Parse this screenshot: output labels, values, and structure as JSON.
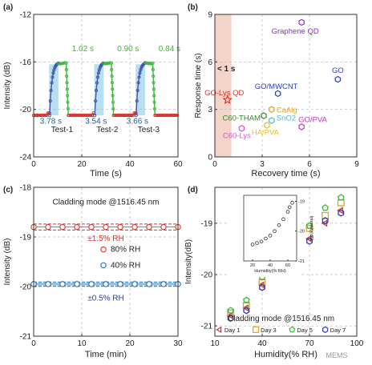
{
  "panels": [
    {
      "letter": "(a)",
      "xlabel": "Time (s)",
      "ylabel": "Intensity (dB)"
    },
    {
      "letter": "(b)",
      "xlabel": "Recovery time (s)",
      "ylabel": "Response time (s)"
    },
    {
      "letter": "(c)",
      "xlabel": "Time (min)",
      "ylabel": "Intensity (dB)"
    },
    {
      "letter": "(d)",
      "xlabel": "Humidity(% RH)",
      "ylabel": "Intensity(dB)"
    }
  ],
  "colors": {
    "red": "#d9342b",
    "green": "#3db83d",
    "blue": "#2f6fb0",
    "cyan": "#7ec8e3",
    "purple": "#8e2bd3",
    "orange": "#e6a21e",
    "cyanband": "#aad9ee",
    "salmon": "#f4d3c8"
  },
  "chart_data": [
    {
      "type": "line",
      "xlabel": "Time (s)",
      "ylabel": "Intensity (dB)",
      "xlim": [
        0,
        60
      ],
      "ylim": [
        -24,
        -12
      ],
      "xticks": [
        0,
        20,
        40,
        60
      ],
      "yticks": [
        -24,
        -20,
        -16,
        -12
      ],
      "series": [
        {
          "name": "",
          "color": "#d9342b",
          "x": [
            0,
            2,
            4,
            5,
            6,
            6.6
          ],
          "y": [
            -20.5,
            -20.5,
            -20.45,
            -20.4,
            -20.2,
            -19.4
          ]
        }
      ],
      "tests": [
        {
          "label": "Test-1",
          "start": 6.6,
          "response_s": "3.78 s",
          "recovery_s": "1.02 s",
          "peak": -16.1
        },
        {
          "label": "Test-2",
          "start": 25.4,
          "response_s": "3.54 s",
          "recovery_s": "0.90 s",
          "peak": -16.1
        },
        {
          "label": "Test-3",
          "start": 42.6,
          "response_s": "3.66 s",
          "recovery_s": "0.84 s",
          "peak": -16.1
        }
      ]
    },
    {
      "type": "scatter",
      "xlabel": "Recovery time (s)",
      "ylabel": "Response time (s)",
      "xlim": [
        0,
        9
      ],
      "ylim": [
        0,
        9
      ],
      "xticks": [
        0,
        3,
        6,
        9
      ],
      "yticks": [
        0,
        3,
        6,
        9
      ],
      "annotation": "< 1 s",
      "points": [
        {
          "label": "Graphene QD",
          "x": 5.5,
          "y": 8.5,
          "color": "#8e2bd3",
          "marker": "hexagon"
        },
        {
          "label": "GO",
          "x": 7.8,
          "y": 4.9,
          "color": "#2b3fb5",
          "marker": "hexagon"
        },
        {
          "label": "GO/MWCNT",
          "x": 4.0,
          "y": 4.0,
          "color": "#2b3fb5",
          "marker": "hexagon"
        },
        {
          "label": "GO-Lys QD",
          "x": 0.8,
          "y": 3.6,
          "color": "#d9342b",
          "marker": "star"
        },
        {
          "label": "CaAlg",
          "x": 3.6,
          "y": 3.0,
          "color": "#e6a21e",
          "marker": "hexagon"
        },
        {
          "label": "C60-THAM",
          "x": 3.1,
          "y": 2.6,
          "color": "#2e8b2e",
          "marker": "hexagon"
        },
        {
          "label": "SnO2",
          "x": 3.6,
          "y": 2.3,
          "color": "#4db8d6",
          "marker": "hexagon"
        },
        {
          "label": "HA/PVA",
          "x": 3.3,
          "y": 2.0,
          "color": "#e6c21e",
          "marker": "hexagon"
        },
        {
          "label": "GO/PVA",
          "x": 5.5,
          "y": 1.9,
          "color": "#c236c2",
          "marker": "hexagon"
        },
        {
          "label": "C60-Lys",
          "x": 1.7,
          "y": 1.8,
          "color": "#d955c8",
          "marker": "hexagon"
        }
      ]
    },
    {
      "type": "scatter",
      "title": "Cladding mode @1516.45 nm",
      "xlabel": "Time (min)",
      "ylabel": "Intensity (dB)",
      "xlim": [
        0,
        30
      ],
      "ylim": [
        -21,
        -18
      ],
      "xticks": [
        0,
        10,
        20,
        30
      ],
      "yticks": [
        -21,
        -20,
        -19,
        -18
      ],
      "series": [
        {
          "name": "80% RH",
          "color": "#d9342b",
          "x": [
            0,
            3,
            6,
            9,
            12,
            15,
            18,
            21,
            24,
            27,
            30
          ],
          "y": [
            -18.8,
            -18.8,
            -18.8,
            -18.8,
            -18.8,
            -18.8,
            -18.8,
            -18.8,
            -18.8,
            -18.8,
            -18.8
          ],
          "band": "±1.5% RH"
        },
        {
          "name": "40% RH",
          "color": "#2f6fb0",
          "x": [
            0,
            3,
            6,
            9,
            12,
            15,
            18,
            21,
            24,
            27,
            30
          ],
          "y": [
            -19.95,
            -19.95,
            -19.95,
            -19.95,
            -19.95,
            -19.95,
            -19.95,
            -19.95,
            -19.95,
            -19.95,
            -19.95
          ],
          "band": "±0.5% RH"
        }
      ]
    },
    {
      "type": "scatter",
      "title": "Cladding mode @1516.45 nm",
      "xlabel": "Humidity(% RH)",
      "ylabel": "Intensity(dB)",
      "xlim": [
        10,
        100
      ],
      "ylim": [
        -21.2,
        -18.3
      ],
      "xticks": [
        10,
        40,
        70,
        100
      ],
      "yticks": [
        -21,
        -20,
        -19
      ],
      "series": [
        {
          "name": "Day 1",
          "color": "#d9342b",
          "marker": "triangle-left",
          "x": [
            20,
            30,
            40,
            50,
            60,
            70,
            80,
            90
          ],
          "y": [
            -20.8,
            -20.65,
            -20.2,
            -19.9,
            -19.65,
            -19.3,
            -19.0,
            -18.75
          ]
        },
        {
          "name": "Day 3",
          "color": "#e6a21e",
          "marker": "square",
          "x": [
            20,
            30,
            40,
            50,
            60,
            70,
            80,
            90
          ],
          "y": [
            -20.75,
            -20.6,
            -20.15,
            -19.85,
            -19.55,
            -19.1,
            -18.85,
            -18.6
          ]
        },
        {
          "name": "Day 5",
          "color": "#3db83d",
          "marker": "pentagon",
          "x": [
            20,
            30,
            40,
            50,
            60,
            70,
            80,
            90
          ],
          "y": [
            -20.7,
            -20.5,
            -20.05,
            -19.8,
            -19.5,
            -19.05,
            -18.7,
            -18.5
          ]
        },
        {
          "name": "Day 7",
          "color": "#2b3fb5",
          "marker": "hexagon",
          "x": [
            20,
            30,
            40,
            50,
            60,
            70,
            80,
            90
          ],
          "y": [
            -20.85,
            -20.7,
            -20.25,
            -19.95,
            -19.6,
            -19.35,
            -18.95,
            -18.8
          ]
        }
      ],
      "inset": {
        "xlabel": "Humidity(% RH)",
        "ylabel": "Intensity(dB)",
        "xlim": [
          10,
          70
        ],
        "ylim": [
          -21,
          -18.8
        ],
        "xticks": [
          20,
          40,
          60
        ],
        "yticks": [
          -21,
          -20,
          -19
        ],
        "x": [
          20,
          25,
          30,
          35,
          40,
          45,
          50,
          55,
          60,
          62,
          65
        ],
        "y": [
          -20.45,
          -20.4,
          -20.35,
          -20.25,
          -20.15,
          -20.0,
          -19.8,
          -19.6,
          -19.35,
          -19.2,
          -19.05
        ]
      }
    }
  ],
  "watermark": "MEMS"
}
